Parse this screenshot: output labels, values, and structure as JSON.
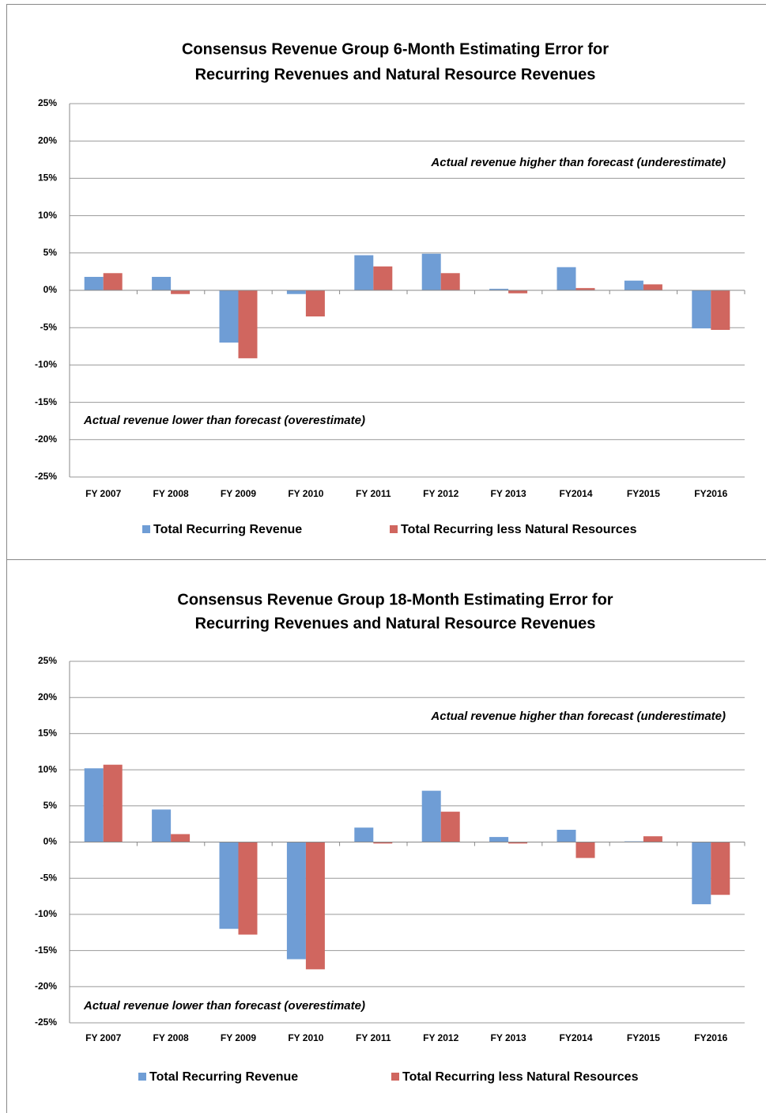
{
  "chart_data": [
    {
      "type": "bar",
      "title": [
        "Consensus Revenue Group 6-Month Estimating Error for",
        "Recurring Revenues and Natural Resource Revenues"
      ],
      "annotations": [
        "Actual revenue higher than forecast (underestimate)",
        "Actual revenue lower than forecast (overestimate)"
      ],
      "categories": [
        "FY 2007",
        "FY 2008",
        "FY 2009",
        "FY 2010",
        "FY 2011",
        "FY 2012",
        "FY 2013",
        "FY2014",
        "FY2015",
        "FY2016"
      ],
      "series": [
        {
          "name": "Total Recurring Revenue",
          "color": "#6f9dd5",
          "values": [
            1.8,
            1.8,
            -7.0,
            -0.5,
            4.7,
            4.9,
            0.2,
            3.1,
            1.3,
            -5.1
          ]
        },
        {
          "name": "Total Recurring less Natural Resources",
          "color": "#d0665f",
          "values": [
            2.3,
            -0.5,
            -9.1,
            -3.5,
            3.2,
            2.3,
            -0.4,
            0.3,
            0.8,
            -5.3
          ]
        }
      ],
      "ylim": [
        -25,
        25
      ],
      "yticks": [
        {
          "value": -25,
          "label": "-25%"
        },
        {
          "value": -20,
          "label": "-20%"
        },
        {
          "value": -15,
          "label": "-15%"
        },
        {
          "value": -10,
          "label": "-10%"
        },
        {
          "value": -5,
          "label": "-5%"
        },
        {
          "value": 0,
          "label": "0%"
        },
        {
          "value": 5,
          "label": "5%"
        },
        {
          "value": 10,
          "label": "10%"
        },
        {
          "value": 15,
          "label": "15%"
        },
        {
          "value": 20,
          "label": "20%"
        },
        {
          "value": 25,
          "label": "25%"
        }
      ],
      "grid": true,
      "legend": "bottom"
    },
    {
      "type": "bar",
      "title": [
        "Consensus Revenue Group 18-Month Estimating Error for",
        "Recurring Revenues and Natural Resource Revenues"
      ],
      "annotations": [
        "Actual revenue higher than forecast (underestimate)",
        "Actual revenue lower than forecast (overestimate)"
      ],
      "categories": [
        "FY 2007",
        "FY 2008",
        "FY 2009",
        "FY 2010",
        "FY 2011",
        "FY 2012",
        "FY 2013",
        "FY2014",
        "FY2015",
        "FY2016"
      ],
      "series": [
        {
          "name": "Total Recurring Revenue",
          "color": "#6f9dd5",
          "values": [
            10.2,
            4.5,
            -12.0,
            -16.2,
            2.0,
            7.1,
            0.7,
            1.7,
            0.1,
            -8.6
          ]
        },
        {
          "name": "Total Recurring less Natural Resources",
          "color": "#d0665f",
          "values": [
            10.7,
            1.1,
            -12.8,
            -17.6,
            -0.2,
            4.2,
            -0.2,
            -2.2,
            0.8,
            -7.3
          ]
        }
      ],
      "ylim": [
        -25,
        25
      ],
      "yticks": [
        {
          "value": -25,
          "label": "-25%"
        },
        {
          "value": -20,
          "label": "-20%"
        },
        {
          "value": -15,
          "label": "-15%"
        },
        {
          "value": -10,
          "label": "-10%"
        },
        {
          "value": -5,
          "label": "-5%"
        },
        {
          "value": 0,
          "label": "0%"
        },
        {
          "value": 5,
          "label": "5%"
        },
        {
          "value": 10,
          "label": "10%"
        },
        {
          "value": 15,
          "label": "15%"
        },
        {
          "value": 20,
          "label": "20%"
        },
        {
          "value": 25,
          "label": "25%"
        }
      ],
      "grid": true,
      "legend": "bottom"
    }
  ]
}
